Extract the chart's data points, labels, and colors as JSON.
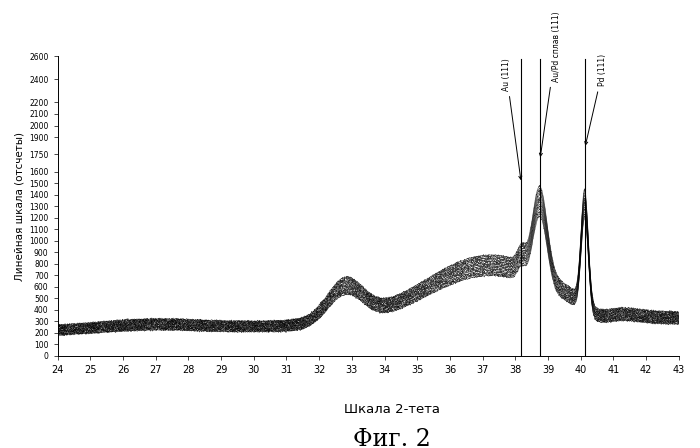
{
  "title": "Фиг. 2",
  "xlabel": "Шкала 2-тета",
  "ylabel": "Линейная шкала (отсчеты)",
  "xlim": [
    24,
    43
  ],
  "ylim": [
    0,
    2600
  ],
  "yticks": [
    0,
    100,
    200,
    300,
    400,
    500,
    600,
    700,
    800,
    900,
    1000,
    1100,
    1200,
    1300,
    1400,
    1500,
    1600,
    1750,
    1900,
    2000,
    2100,
    2200,
    2400,
    2600
  ],
  "xticks": [
    24,
    25,
    26,
    27,
    28,
    29,
    30,
    31,
    32,
    33,
    34,
    35,
    36,
    37,
    38,
    39,
    40,
    41,
    42,
    43
  ],
  "annotation_Au": {
    "x": 38.18,
    "label": "Au (111)"
  },
  "annotation_AuPd": {
    "x": 38.75,
    "label": "Au/Pd сплав (111)"
  },
  "annotation_Pd": {
    "x": 40.12,
    "label": "Pd (111)"
  },
  "n_curves": 14,
  "background_color": "#ffffff"
}
